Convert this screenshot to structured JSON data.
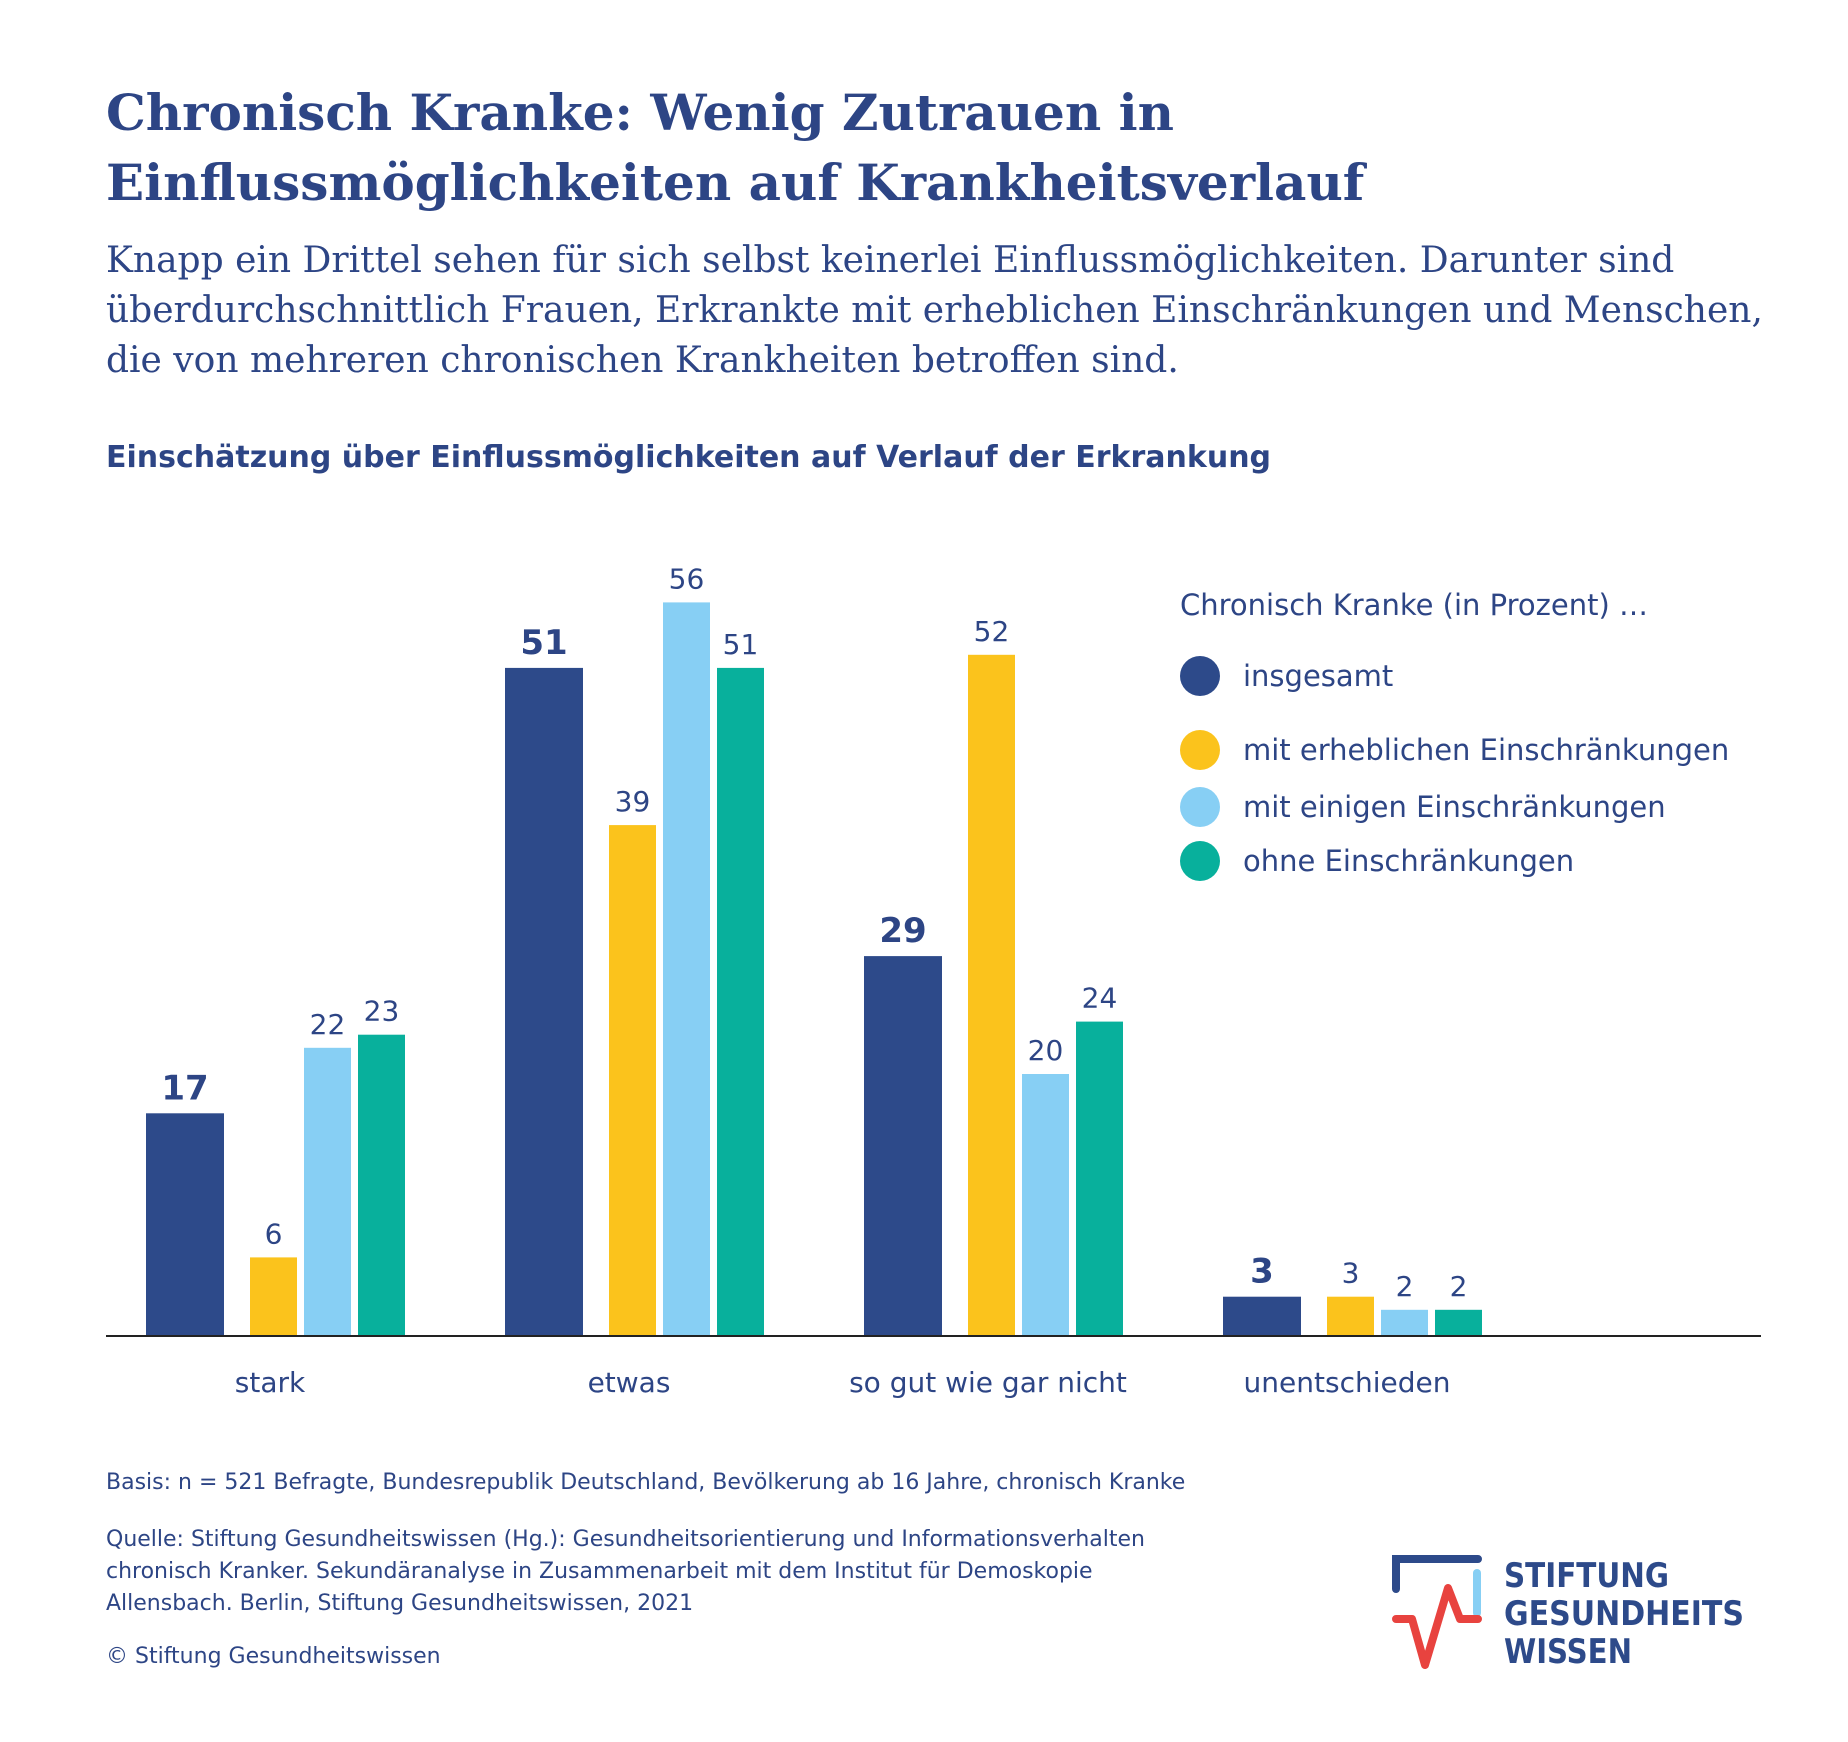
{
  "title": "Chronisch Kranke: Wenig Zutrauen in Einflussmöglichkeiten auf Krankheitsverlauf",
  "subtitle": "Knapp ein Drittel sehen für sich selbst keinerlei Einflussmöglichkeiten. Darunter sind überdurchschnittlich Frauen, Erkrankte mit erheblichen Einschränkungen und Menschen, die von mehreren chronischen Krankheiten betroffen sind.",
  "chart_heading": "Einschätzung über Einflussmöglichkeiten auf Verlauf der Erkrankung",
  "chart_data": {
    "type": "bar",
    "title": "Einschätzung über Einflussmöglichkeiten auf Verlauf der Erkrankung",
    "legend_title": "Chronisch Kranke (in Prozent) …",
    "legend_placement": "top-right",
    "categories": [
      "stark",
      "etwas",
      "so gut wie gar nicht",
      "unentschieden"
    ],
    "series": [
      {
        "name": "insgesamt",
        "color": "#2d4a8a",
        "values": [
          17,
          51,
          29,
          3
        ]
      },
      {
        "name": "mit erheblichen Einschränkungen",
        "color": "#fbc31c",
        "values": [
          6,
          39,
          52,
          3
        ]
      },
      {
        "name": "mit einigen Einschränkungen",
        "color": "#87cff4",
        "values": [
          22,
          56,
          20,
          2
        ]
      },
      {
        "name": "ohne Einschränkungen",
        "color": "#08b09c",
        "values": [
          23,
          51,
          24,
          2
        ]
      }
    ],
    "ylim": [
      0,
      60
    ],
    "grid": false
  },
  "footer": {
    "basis": "Basis: n = 521 Befragte, Bundesrepublik Deutschland, Bevölkerung ab 16 Jahre, chronisch Kranke",
    "quelle_lines": [
      "Quelle: Stiftung Gesundheitswissen (Hg.): Gesundheitsorientierung und Informationsverhalten",
      "chronisch Kranker. Sekundäranalyse in Zusammenarbeit mit dem Institut für Demoskopie",
      "Allensbach. Berlin, Stiftung Gesundheitswissen, 2021"
    ],
    "copyright": "© Stiftung Gesundheitswissen"
  },
  "logo": {
    "lines": [
      "STIFTUNG",
      "GESUNDHEITS",
      "WISSEN"
    ],
    "colors": {
      "blue": "#2d4a8a",
      "red": "#e8433f",
      "light": "#87cff4"
    }
  }
}
